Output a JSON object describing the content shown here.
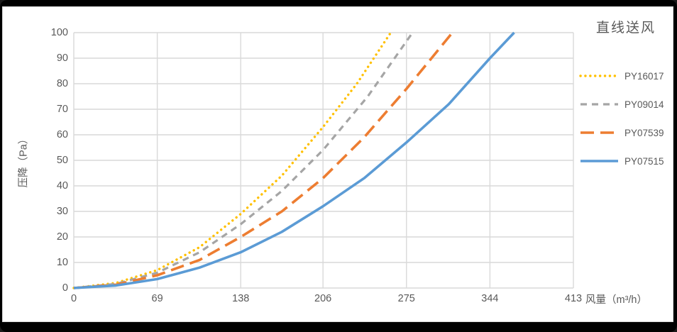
{
  "chart_data": {
    "type": "line",
    "title": "直线送风",
    "xlabel": "风量（m³/h）",
    "ylabel": "压降（Pa）",
    "xlim": [
      0,
      413
    ],
    "ylim": [
      0,
      100
    ],
    "x_ticks": [
      0,
      69,
      138,
      206,
      275,
      344,
      413
    ],
    "y_ticks": [
      0,
      10,
      20,
      30,
      40,
      50,
      60,
      70,
      80,
      90,
      100
    ],
    "grid": true,
    "legend_position": "right",
    "series": [
      {
        "name": "PY16017",
        "color": "#FFC000",
        "style": "dotted",
        "points": [
          [
            0,
            0
          ],
          [
            35,
            2
          ],
          [
            69,
            7
          ],
          [
            104,
            16
          ],
          [
            138,
            29
          ],
          [
            172,
            44
          ],
          [
            206,
            63
          ],
          [
            234,
            80
          ],
          [
            262,
            100
          ]
        ]
      },
      {
        "name": "PY09014",
        "color": "#A5A5A5",
        "style": "dashed",
        "points": [
          [
            0,
            0
          ],
          [
            35,
            1.6
          ],
          [
            69,
            6
          ],
          [
            104,
            14
          ],
          [
            138,
            25
          ],
          [
            172,
            38
          ],
          [
            206,
            54
          ],
          [
            243,
            75
          ],
          [
            280,
            100
          ]
        ]
      },
      {
        "name": "PY07539",
        "color": "#ED7D31",
        "style": "long-dash",
        "points": [
          [
            0,
            0
          ],
          [
            35,
            1.3
          ],
          [
            69,
            5
          ],
          [
            104,
            11
          ],
          [
            138,
            20
          ],
          [
            172,
            30
          ],
          [
            206,
            43
          ],
          [
            240,
            59
          ],
          [
            275,
            78
          ],
          [
            313,
            100
          ]
        ]
      },
      {
        "name": "PY07515",
        "color": "#5B9BD5",
        "style": "solid",
        "points": [
          [
            0,
            0
          ],
          [
            35,
            1
          ],
          [
            69,
            3.5
          ],
          [
            104,
            8
          ],
          [
            138,
            14
          ],
          [
            172,
            22
          ],
          [
            206,
            32
          ],
          [
            240,
            43
          ],
          [
            275,
            57
          ],
          [
            310,
            72
          ],
          [
            344,
            90
          ],
          [
            364,
            100
          ]
        ]
      }
    ]
  },
  "colors": {
    "grid": "#D9D9D9",
    "text": "#595959",
    "panel_bg": "#FFFFFF",
    "frame_bg": "#000000"
  }
}
